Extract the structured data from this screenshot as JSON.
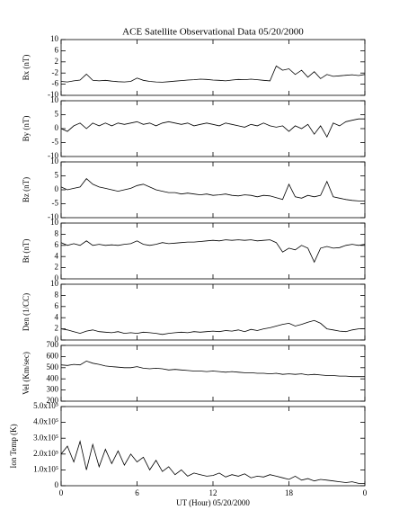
{
  "chart_data": [
    {
      "type": "line",
      "title": "ACE Satellite Observational Data  05/20/2000",
      "y_label": "Bx (nT)",
      "color": "#000000",
      "x": [
        0,
        0.5,
        1,
        1.5,
        2,
        2.5,
        3,
        3.5,
        4,
        4.5,
        5,
        5.5,
        6,
        6.5,
        7,
        7.5,
        8,
        8.5,
        9,
        9.5,
        10,
        10.5,
        11,
        11.5,
        12,
        12.5,
        13,
        13.5,
        14,
        14.5,
        15,
        15.5,
        16,
        16.5,
        17,
        17.5,
        18,
        18.5,
        19,
        19.5,
        20,
        20.5,
        21,
        21.5,
        22,
        22.5,
        23,
        23.5,
        24
      ],
      "values": [
        -5,
        -5.2,
        -4.8,
        -4.5,
        -2.4,
        -4.6,
        -4.8,
        -4.6,
        -4.9,
        -5.1,
        -5.2,
        -5,
        -3.8,
        -4.6,
        -5,
        -5.2,
        -5.3,
        -5.1,
        -4.9,
        -4.7,
        -4.5,
        -4.4,
        -4.2,
        -4.3,
        -4.5,
        -4.6,
        -4.8,
        -4.5,
        -4.3,
        -4.4,
        -4.2,
        -4.4,
        -4.6,
        -4.8,
        0.5,
        -1,
        -0.5,
        -2.5,
        -1,
        -3.5,
        -1.5,
        -4,
        -2.5,
        -3.2,
        -3,
        -2.8,
        -2.6,
        -2.9,
        -2.5
      ],
      "xlim": [
        0,
        24
      ],
      "ylim": [
        -10,
        10
      ],
      "yticks": [
        -10,
        -6,
        -2,
        2,
        6,
        10
      ]
    },
    {
      "type": "line",
      "y_label": "By (nT)",
      "color": "#000000",
      "x": [
        0,
        0.5,
        1,
        1.5,
        2,
        2.5,
        3,
        3.5,
        4,
        4.5,
        5,
        5.5,
        6,
        6.5,
        7,
        7.5,
        8,
        8.5,
        9,
        9.5,
        10,
        10.5,
        11,
        11.5,
        12,
        12.5,
        13,
        13.5,
        14,
        14.5,
        15,
        15.5,
        16,
        16.5,
        17,
        17.5,
        18,
        18.5,
        19,
        19.5,
        20,
        20.5,
        21,
        21.5,
        22,
        22.5,
        23,
        23.5,
        24
      ],
      "values": [
        0,
        -1,
        1,
        2,
        0,
        2,
        1,
        2,
        1,
        2,
        1.5,
        2,
        2.5,
        1.5,
        2,
        1,
        2,
        2.5,
        2,
        1.5,
        2,
        1,
        1.5,
        2,
        1.5,
        1,
        2,
        1.5,
        1,
        0.5,
        1.5,
        1,
        2,
        1,
        0.5,
        1,
        -1,
        1,
        0,
        1.5,
        -2,
        1,
        -3,
        2,
        1,
        2.5,
        3,
        3.5,
        3.5
      ],
      "xlim": [
        0,
        24
      ],
      "ylim": [
        -10,
        10
      ],
      "yticks": [
        -10,
        -5,
        0,
        5,
        10
      ]
    },
    {
      "type": "line",
      "y_label": "Bz (nT)",
      "color": "#000000",
      "x": [
        0,
        0.5,
        1,
        1.5,
        2,
        2.5,
        3,
        3.5,
        4,
        4.5,
        5,
        5.5,
        6,
        6.5,
        7,
        7.5,
        8,
        8.5,
        9,
        9.5,
        10,
        10.5,
        11,
        11.5,
        12,
        12.5,
        13,
        13.5,
        14,
        14.5,
        15,
        15.5,
        16,
        16.5,
        17,
        17.5,
        18,
        18.5,
        19,
        19.5,
        20,
        20.5,
        21,
        21.5,
        22,
        22.5,
        23,
        23.5,
        24
      ],
      "values": [
        1,
        0,
        0.5,
        1,
        4,
        2,
        1,
        0.5,
        0,
        -0.5,
        0,
        0.5,
        1.5,
        2,
        1,
        0,
        -0.5,
        -1,
        -1,
        -1.5,
        -1.2,
        -1.5,
        -1.8,
        -1.5,
        -2,
        -1.8,
        -1.5,
        -2,
        -2.2,
        -1.8,
        -2,
        -2.5,
        -2,
        -2.2,
        -2.8,
        -3.5,
        2,
        -2.5,
        -3,
        -2,
        -2.5,
        -2,
        3,
        -2.5,
        -3,
        -3.5,
        -3.8,
        -4,
        -4
      ],
      "xlim": [
        0,
        24
      ],
      "ylim": [
        -10,
        10
      ],
      "yticks": [
        -10,
        -5,
        0,
        5,
        10
      ]
    },
    {
      "type": "line",
      "y_label": "Bt (nT)",
      "color": "#000000",
      "x": [
        0,
        0.5,
        1,
        1.5,
        2,
        2.5,
        3,
        3.5,
        4,
        4.5,
        5,
        5.5,
        6,
        6.5,
        7,
        7.5,
        8,
        8.5,
        9,
        9.5,
        10,
        10.5,
        11,
        11.5,
        12,
        12.5,
        13,
        13.5,
        14,
        14.5,
        15,
        15.5,
        16,
        16.5,
        17,
        17.5,
        18,
        18.5,
        19,
        19.5,
        20,
        20.5,
        21,
        21.5,
        22,
        22.5,
        23,
        23.5,
        24
      ],
      "values": [
        6.5,
        6,
        6.3,
        6,
        6.8,
        6,
        6.2,
        6,
        6.1,
        6,
        6.2,
        6.3,
        6.8,
        6.2,
        6,
        6.2,
        6.5,
        6.3,
        6.4,
        6.5,
        6.6,
        6.6,
        6.7,
        6.8,
        6.9,
        6.8,
        7,
        6.9,
        7,
        6.9,
        7,
        6.8,
        6.9,
        7,
        6.5,
        4.8,
        5.5,
        5.2,
        6,
        5.5,
        3,
        5.5,
        5.8,
        5.5,
        5.6,
        6,
        6.2,
        6,
        6.2
      ],
      "xlim": [
        0,
        24
      ],
      "ylim": [
        0,
        10
      ],
      "yticks": [
        0,
        2,
        4,
        6,
        8,
        10
      ]
    },
    {
      "type": "line",
      "y_label": "Den (1/CC)",
      "color": "#000000",
      "x": [
        0,
        0.5,
        1,
        1.5,
        2,
        2.5,
        3,
        3.5,
        4,
        4.5,
        5,
        5.5,
        6,
        6.5,
        7,
        7.5,
        8,
        8.5,
        9,
        9.5,
        10,
        10.5,
        11,
        11.5,
        12,
        12.5,
        13,
        13.5,
        14,
        14.5,
        15,
        15.5,
        16,
        16.5,
        17,
        17.5,
        18,
        18.5,
        19,
        19.5,
        20,
        20.5,
        21,
        21.5,
        22,
        22.5,
        23,
        23.5,
        24
      ],
      "values": [
        2,
        1.8,
        1.5,
        1.2,
        1.6,
        1.8,
        1.5,
        1.4,
        1.3,
        1.5,
        1.2,
        1.3,
        1.2,
        1.4,
        1.3,
        1.2,
        1,
        1.2,
        1.3,
        1.4,
        1.3,
        1.5,
        1.4,
        1.5,
        1.6,
        1.5,
        1.7,
        1.6,
        1.8,
        1.5,
        1.9,
        1.7,
        2,
        2.2,
        2.5,
        2.8,
        3,
        2.5,
        2.8,
        3.2,
        3.5,
        3,
        2,
        1.8,
        1.6,
        1.5,
        1.8,
        2,
        2
      ],
      "xlim": [
        0,
        24
      ],
      "ylim": [
        0,
        10
      ],
      "yticks": [
        0,
        2,
        4,
        6,
        8,
        10
      ]
    },
    {
      "type": "line",
      "y_label": "Vel (Km/sec)",
      "color": "#000000",
      "x": [
        0,
        0.5,
        1,
        1.5,
        2,
        2.5,
        3,
        3.5,
        4,
        4.5,
        5,
        5.5,
        6,
        6.5,
        7,
        7.5,
        8,
        8.5,
        9,
        9.5,
        10,
        10.5,
        11,
        11.5,
        12,
        12.5,
        13,
        13.5,
        14,
        14.5,
        15,
        15.5,
        16,
        16.5,
        17,
        17.5,
        18,
        18.5,
        19,
        19.5,
        20,
        20.5,
        21,
        21.5,
        22,
        22.5,
        23,
        23.5,
        24
      ],
      "values": [
        525,
        520,
        530,
        525,
        560,
        540,
        530,
        515,
        510,
        505,
        500,
        500,
        510,
        495,
        490,
        495,
        490,
        480,
        485,
        480,
        475,
        470,
        470,
        465,
        470,
        465,
        460,
        465,
        460,
        455,
        455,
        450,
        450,
        445,
        450,
        440,
        445,
        440,
        445,
        435,
        440,
        435,
        430,
        430,
        425,
        425,
        420,
        420,
        420
      ],
      "xlim": [
        0,
        24
      ],
      "ylim": [
        200,
        700
      ],
      "yticks": [
        200,
        300,
        400,
        500,
        600,
        700
      ]
    },
    {
      "type": "line",
      "y_label": "Ion Temp (K)",
      "x_label": "UT (Hour)  05/20/2000",
      "color": "#000000",
      "x": [
        0,
        0.5,
        1,
        1.5,
        2,
        2.5,
        3,
        3.5,
        4,
        4.5,
        5,
        5.5,
        6,
        6.5,
        7,
        7.5,
        8,
        8.5,
        9,
        9.5,
        10,
        10.5,
        11,
        11.5,
        12,
        12.5,
        13,
        13.5,
        14,
        14.5,
        15,
        15.5,
        16,
        16.5,
        17,
        17.5,
        18,
        18.5,
        19,
        19.5,
        20,
        20.5,
        21,
        21.5,
        22,
        22.5,
        23,
        23.5,
        24
      ],
      "values": [
        200000,
        250000,
        150000,
        280000,
        100000,
        260000,
        120000,
        230000,
        140000,
        220000,
        130000,
        200000,
        150000,
        180000,
        100000,
        160000,
        90000,
        120000,
        70000,
        100000,
        60000,
        80000,
        70000,
        60000,
        65000,
        80000,
        55000,
        70000,
        60000,
        75000,
        50000,
        60000,
        55000,
        70000,
        60000,
        50000,
        40000,
        60000,
        35000,
        45000,
        30000,
        40000,
        35000,
        30000,
        25000,
        20000,
        25000,
        15000,
        15000
      ],
      "xlim": [
        0,
        24
      ],
      "ylim": [
        0,
        500000
      ],
      "yticks": [
        0,
        {
          "value": 100000,
          "label": "1.0x10⁵"
        },
        {
          "value": 200000,
          "label": "2.0x10⁵"
        },
        {
          "value": 300000,
          "label": "3.0x10⁵"
        },
        {
          "value": 400000,
          "label": "4.0x10⁵"
        },
        {
          "value": 500000,
          "label": "5.0x10⁵"
        }
      ],
      "xticks": [
        0,
        6,
        12,
        18,
        {
          "value": 24,
          "label": "0"
        }
      ]
    }
  ]
}
